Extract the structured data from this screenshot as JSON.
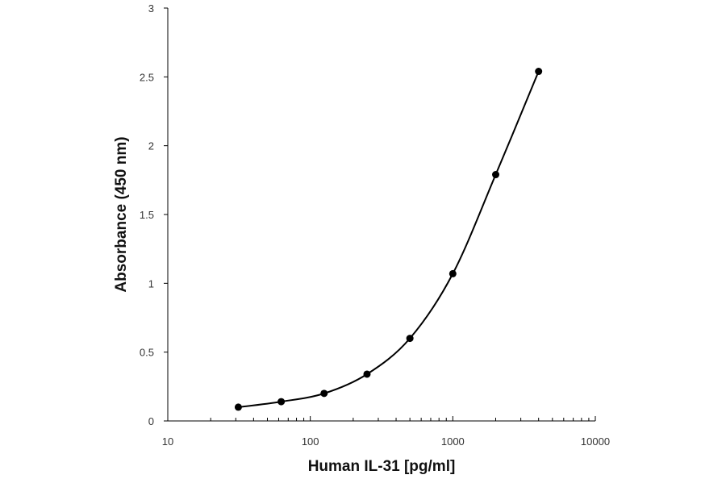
{
  "chart_data": {
    "type": "scatter",
    "xlabel": "Human IL-31 [pg/ml]",
    "ylabel": "Absorbance (450 nm)",
    "x_scale": "log",
    "xlim": [
      10,
      10000
    ],
    "ylim": [
      0,
      3
    ],
    "x_ticks": [
      {
        "value": 10,
        "label": "10"
      },
      {
        "value": 100,
        "label": "100"
      },
      {
        "value": 1000,
        "label": "1000"
      },
      {
        "value": 10000,
        "label": "10000"
      }
    ],
    "y_ticks": [
      {
        "value": 0,
        "label": "0"
      },
      {
        "value": 0.5,
        "label": "0.5"
      },
      {
        "value": 1,
        "label": "1"
      },
      {
        "value": 1.5,
        "label": "1.5"
      },
      {
        "value": 2,
        "label": "2"
      },
      {
        "value": 2.5,
        "label": "2.5"
      },
      {
        "value": 3,
        "label": "3"
      }
    ],
    "grid": false,
    "series": [
      {
        "x": [
          31.25,
          62.5,
          125,
          250,
          500,
          1000,
          2000,
          4000
        ],
        "y": [
          0.1,
          0.14,
          0.2,
          0.34,
          0.6,
          1.07,
          1.79,
          2.54
        ],
        "color": "#000000",
        "marker": "circle",
        "line": "smooth"
      }
    ]
  }
}
